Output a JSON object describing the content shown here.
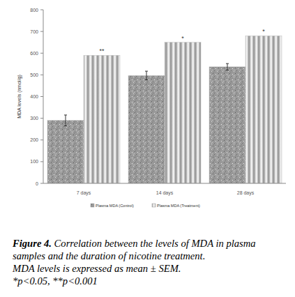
{
  "chart_data": {
    "type": "bar",
    "y_label": "MDA levels (nmol/g)",
    "categories": [
      "7 days",
      "14 days",
      "28 days"
    ],
    "series": [
      {
        "name": "Plasma MDA (Control)",
        "color": "#9a9a9a",
        "values": [
          290,
          497,
          537
        ],
        "errors": [
          25,
          20,
          15
        ]
      },
      {
        "name": "Plasma MDA (Treatment)",
        "color": "#8c8c8c",
        "values": [
          590,
          650,
          680
        ],
        "significance": [
          "**",
          "*",
          "*"
        ]
      }
    ],
    "ylim": [
      0,
      800
    ],
    "yticks": [
      0,
      100,
      200,
      300,
      400,
      500,
      600,
      700,
      800
    ],
    "grid": false,
    "legend": "bottom",
    "caption_label": "Figure 4.",
    "caption": [
      "Correlation between the levels of MDA in plasma samples and the duration of nicotine treatment.",
      "MDA levels is expressed as mean ± SEM."
    ],
    "footnote": "*p<0.05, **p<0.001"
  }
}
